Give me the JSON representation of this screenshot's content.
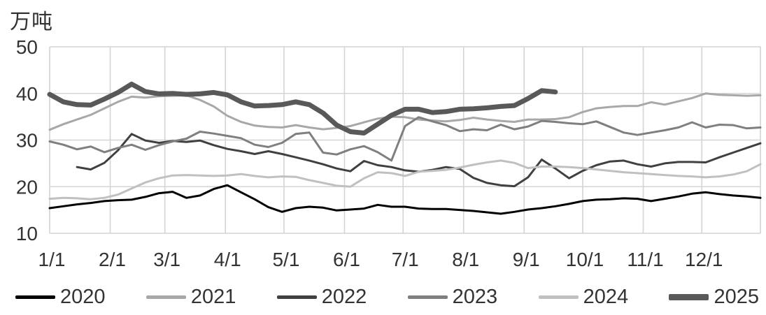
{
  "chart_data": {
    "type": "line",
    "unit": "万吨",
    "ylim": [
      10,
      50
    ],
    "y_ticks": [
      10,
      20,
      30,
      40,
      50
    ],
    "x_tick_labels": [
      "1/1",
      "2/1",
      "3/1",
      "4/1",
      "5/1",
      "6/1",
      "7/1",
      "8/1",
      "9/1",
      "10/1",
      "11/1",
      "12/1"
    ],
    "x_tick_doys": [
      1,
      32,
      60,
      91,
      121,
      152,
      182,
      213,
      244,
      274,
      305,
      335
    ],
    "grid_doys": [
      1,
      32,
      60,
      91,
      121,
      152,
      182,
      213,
      244,
      274,
      305,
      335,
      365
    ],
    "x_doys": [
      1,
      8,
      15,
      22,
      29,
      36,
      43,
      50,
      57,
      64,
      71,
      78,
      85,
      92,
      99,
      106,
      113,
      120,
      127,
      134,
      141,
      148,
      155,
      162,
      169,
      176,
      183,
      190,
      197,
      204,
      211,
      218,
      225,
      232,
      239,
      246,
      253,
      260,
      267,
      274,
      281,
      288,
      295,
      302,
      309,
      316,
      323,
      330,
      337,
      344,
      351,
      358,
      365
    ],
    "grid": true,
    "grid_color": "#d4d4d4",
    "text_color": "#333333",
    "legend_position": "bottom",
    "series": [
      {
        "name": "2020",
        "color": "#000000",
        "width": 3,
        "values": [
          15.4,
          15.8,
          16.2,
          16.5,
          16.9,
          17.1,
          17.2,
          17.8,
          18.6,
          18.9,
          17.6,
          18.1,
          19.5,
          20.3,
          18.8,
          17.3,
          15.6,
          14.6,
          15.4,
          15.7,
          15.5,
          14.9,
          15.1,
          15.3,
          16.1,
          15.7,
          15.7,
          15.3,
          15.2,
          15.2,
          15.0,
          14.8,
          14.5,
          14.2,
          14.6,
          15.1,
          15.4,
          15.8,
          16.3,
          16.9,
          17.2,
          17.3,
          17.5,
          17.4,
          16.9,
          17.4,
          17.9,
          18.5,
          18.8,
          18.4,
          18.1,
          17.9,
          17.6
        ]
      },
      {
        "name": "2021",
        "color": "#a8a8a8",
        "width": 3,
        "values": [
          32.2,
          33.4,
          34.4,
          35.4,
          36.8,
          38.2,
          39.3,
          39.1,
          39.4,
          39.5,
          39.6,
          38.6,
          37.2,
          35.2,
          33.9,
          33.1,
          32.8,
          32.7,
          33.2,
          32.7,
          32.3,
          32.6,
          33.0,
          33.8,
          34.6,
          35.0,
          34.9,
          34.4,
          34.2,
          34.0,
          34.3,
          34.8,
          34.4,
          34.1,
          33.9,
          34.4,
          34.4,
          34.5,
          34.9,
          36.0,
          36.8,
          37.1,
          37.3,
          37.3,
          38.1,
          37.6,
          38.3,
          39.0,
          40.0,
          39.7,
          39.6,
          39.5,
          39.6
        ]
      },
      {
        "name": "2022",
        "color": "#404040",
        "width": 3,
        "values": [
          null,
          null,
          24.2,
          23.7,
          25.1,
          27.8,
          31.3,
          29.9,
          29.4,
          29.8,
          29.6,
          29.9,
          28.9,
          28.1,
          27.6,
          27.0,
          27.6,
          27.0,
          26.3,
          25.6,
          24.8,
          23.9,
          23.3,
          25.5,
          24.6,
          24.2,
          23.5,
          23.2,
          23.6,
          24.2,
          23.8,
          21.9,
          20.8,
          20.3,
          20.1,
          22.0,
          25.8,
          23.9,
          21.8,
          23.4,
          24.6,
          25.4,
          25.6,
          24.8,
          24.3,
          25.0,
          25.3,
          25.3,
          25.2,
          26.3,
          27.3,
          28.3,
          29.3
        ]
      },
      {
        "name": "2023",
        "color": "#7f7f7f",
        "width": 3,
        "values": [
          29.7,
          29.0,
          28.0,
          28.6,
          27.4,
          28.3,
          29.0,
          27.9,
          28.9,
          29.7,
          30.3,
          31.8,
          31.4,
          30.9,
          30.4,
          29.0,
          28.5,
          29.4,
          31.3,
          31.6,
          27.3,
          26.9,
          28.0,
          28.7,
          27.4,
          25.6,
          33.0,
          34.9,
          34.0,
          33.2,
          31.9,
          32.3,
          32.1,
          33.3,
          32.3,
          32.9,
          34.1,
          33.9,
          33.6,
          33.4,
          34.0,
          32.8,
          31.6,
          31.1,
          31.6,
          32.1,
          32.7,
          33.8,
          32.7,
          33.3,
          33.2,
          32.5,
          32.7
        ]
      },
      {
        "name": "2024",
        "color": "#c0c0c0",
        "width": 3,
        "values": [
          17.4,
          17.6,
          17.5,
          17.3,
          17.6,
          18.3,
          19.6,
          20.9,
          21.8,
          22.4,
          22.5,
          22.4,
          22.3,
          22.4,
          22.7,
          22.3,
          22.0,
          22.2,
          22.1,
          21.4,
          20.8,
          20.2,
          20.0,
          21.8,
          23.1,
          22.9,
          22.3,
          23.2,
          23.4,
          23.6,
          24.1,
          24.7,
          25.2,
          25.6,
          25.1,
          24.0,
          24.3,
          24.3,
          24.2,
          24.0,
          23.7,
          23.4,
          23.1,
          22.9,
          22.7,
          22.5,
          22.3,
          22.2,
          22.0,
          22.2,
          22.6,
          23.3,
          24.8
        ]
      },
      {
        "name": "2025",
        "color": "#595959",
        "width": 7,
        "values": [
          39.8,
          38.2,
          37.6,
          37.5,
          38.8,
          40.2,
          42.0,
          40.4,
          39.9,
          40.0,
          39.8,
          39.9,
          40.2,
          39.7,
          38.2,
          37.3,
          37.4,
          37.6,
          38.2,
          37.6,
          35.8,
          33.2,
          31.8,
          31.5,
          33.4,
          35.3,
          36.6,
          36.6,
          35.9,
          36.1,
          36.6,
          36.7,
          36.9,
          37.2,
          37.4,
          38.9,
          40.6,
          40.3,
          null,
          null,
          null,
          null,
          null,
          null,
          null,
          null,
          null,
          null,
          null,
          null,
          null,
          null,
          null
        ]
      }
    ]
  }
}
